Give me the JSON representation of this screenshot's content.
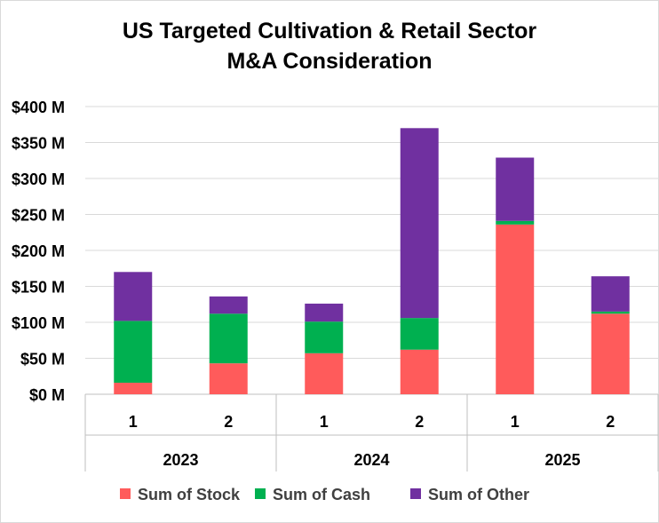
{
  "chart_data": {
    "type": "bar",
    "stacked": true,
    "title": "US Targeted Cultivation & Retail Sector",
    "subtitle": "M&A Consideration",
    "years": [
      "2023",
      "2024",
      "2025"
    ],
    "categories": [
      "1",
      "2",
      "1",
      "2",
      "1",
      "2"
    ],
    "ylim": [
      0,
      400
    ],
    "yticks": [
      "$0 M",
      "$50 M",
      "$100 M",
      "$150 M",
      "$200 M",
      "$250 M",
      "$300 M",
      "$350 M",
      "$400 M"
    ],
    "grid": true,
    "legend_position": "bottom",
    "series": [
      {
        "name": "Sum of Stock",
        "color": "#ff5b5b",
        "values": [
          16,
          43,
          57,
          62,
          236,
          112
        ]
      },
      {
        "name": "Sum of Cash",
        "color": "#00b050",
        "values": [
          86,
          69,
          44,
          44,
          5,
          3
        ]
      },
      {
        "name": "Sum of Other",
        "color": "#7030a0",
        "values": [
          68,
          24,
          25,
          264,
          88,
          49
        ]
      }
    ]
  }
}
